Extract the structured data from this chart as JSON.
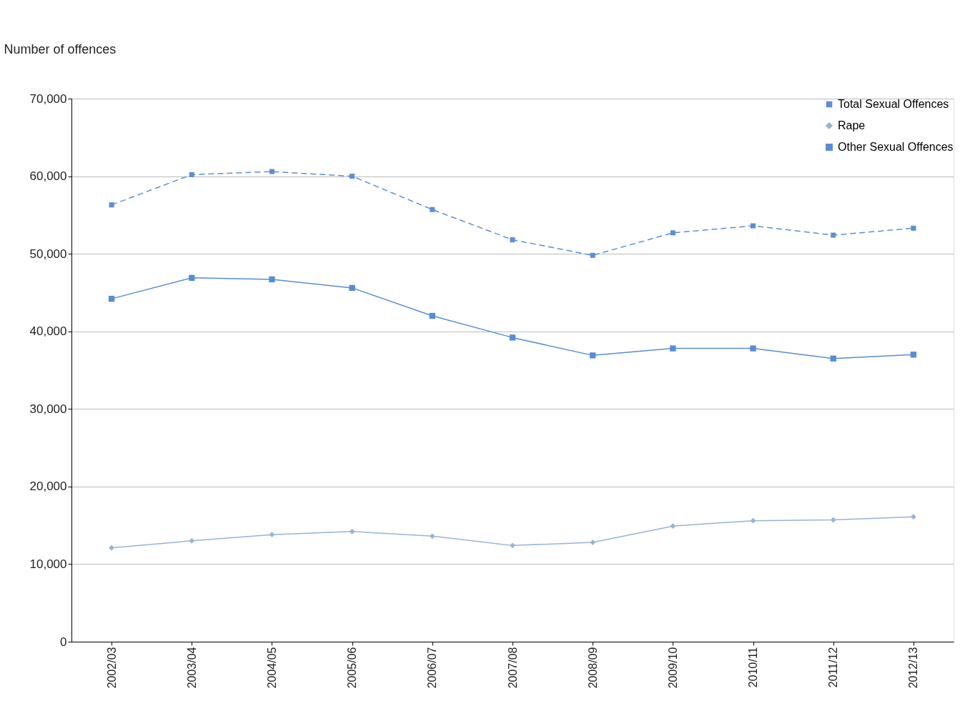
{
  "chart_data": {
    "type": "line",
    "ylabel": "Number of offences",
    "categories": [
      "2002/03",
      "2003/04",
      "2004/05",
      "2005/06",
      "2006/07",
      "2007/08",
      "2008/09",
      "2009/10",
      "2010/11",
      "2011/12",
      "2012/13"
    ],
    "series": [
      {
        "name": "Total Sexual Offences",
        "color": "#5a8fd6",
        "marker": "square",
        "line_style": "dashed",
        "values": [
          56300,
          60200,
          60600,
          60000,
          55700,
          51800,
          49800,
          52700,
          53600,
          52400,
          53300
        ]
      },
      {
        "name": "Rape",
        "color": "#95b3d7",
        "marker": "diamond",
        "line_style": "solid",
        "values": [
          12100,
          13000,
          13800,
          14200,
          13600,
          12400,
          12800,
          14900,
          15600,
          15700,
          16100
        ]
      },
      {
        "name": "Other Sexual Offences",
        "color": "#558ed5",
        "marker": "square",
        "line_style": "solid",
        "values": [
          44200,
          46900,
          46700,
          45600,
          42000,
          39200,
          36900,
          37800,
          37800,
          36500,
          37000
        ]
      }
    ],
    "ylim": [
      0,
      70000
    ],
    "yticks": [
      0,
      {
        "value": 10000,
        "label": "10,000"
      },
      {
        "value": 20000,
        "label": "20,000"
      },
      {
        "value": 30000,
        "label": "30,000"
      },
      {
        "value": 40000,
        "label": "40,000"
      },
      {
        "value": 50000,
        "label": "50,000"
      },
      {
        "value": 60000,
        "label": "60,000"
      },
      {
        "value": 70000,
        "label": "70,000"
      }
    ],
    "grid": "y",
    "legend": "top right"
  }
}
